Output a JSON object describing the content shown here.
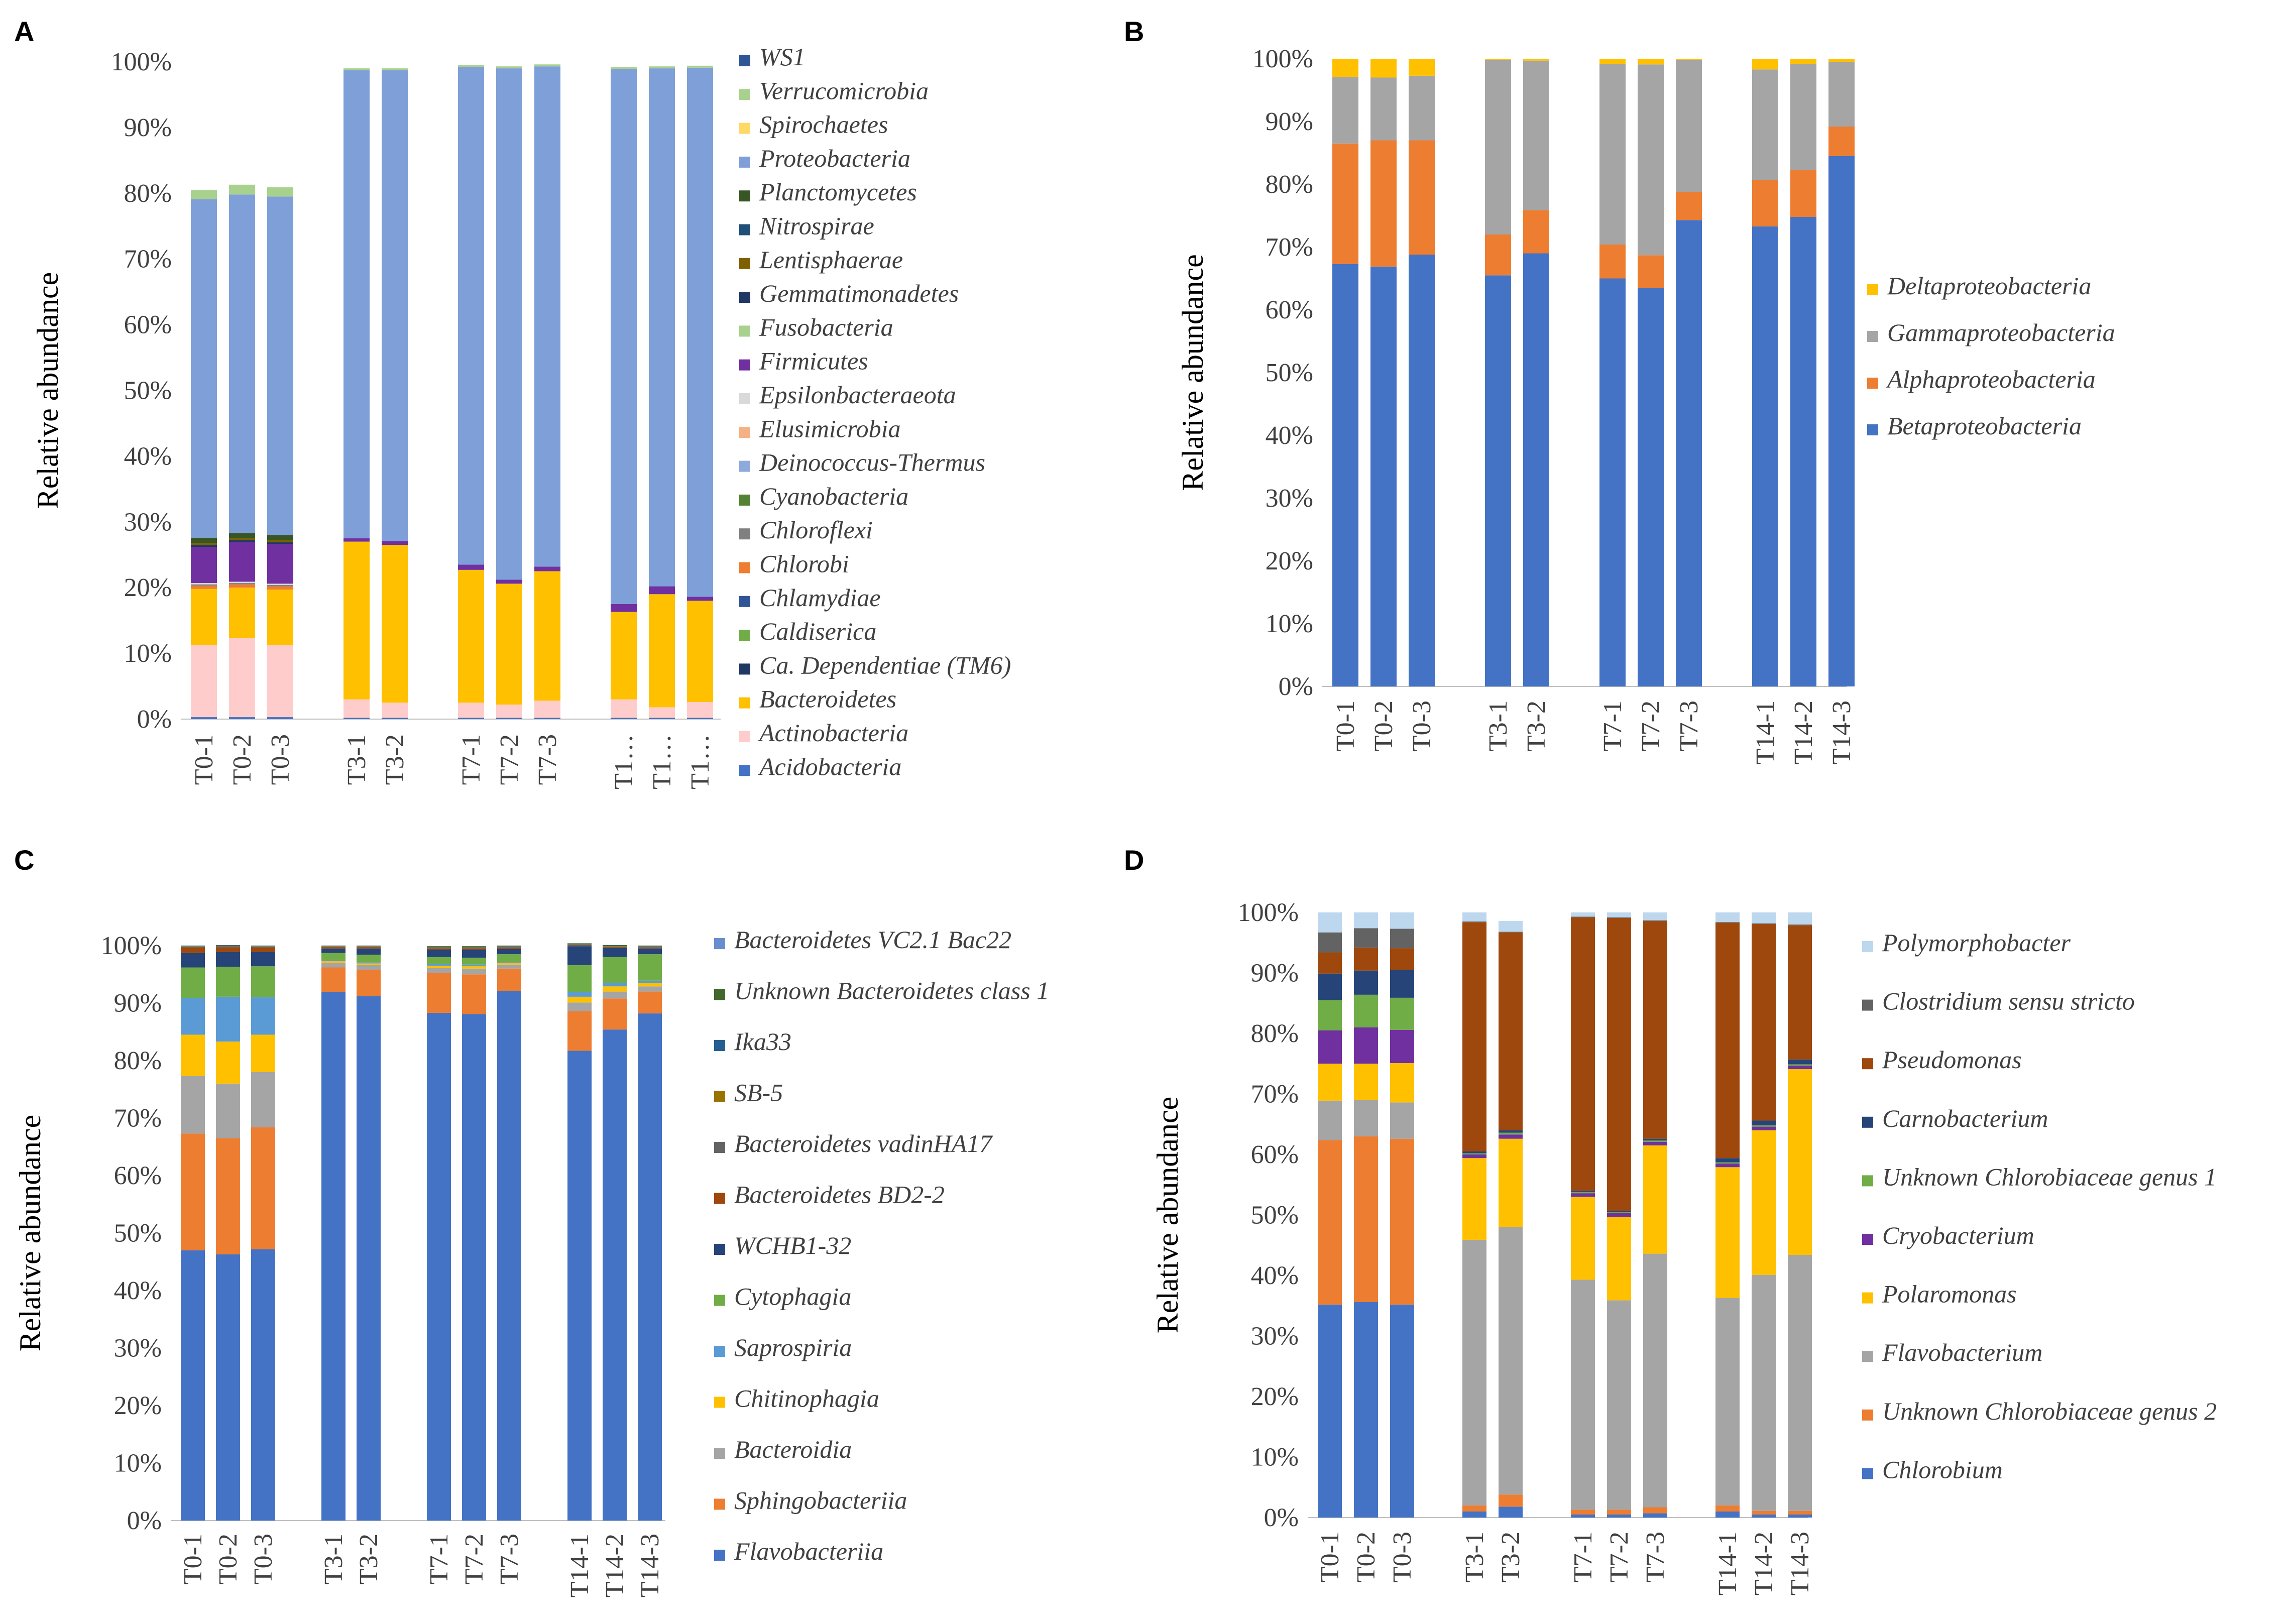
{
  "panels": [
    {
      "letter": "A"
    },
    {
      "letter": "B"
    },
    {
      "letter": "C"
    },
    {
      "letter": "D"
    }
  ],
  "chart_data": [
    {
      "panel": "A",
      "type": "bar",
      "stacked": true,
      "ylabel": "Relative abundance",
      "ylim": [
        0,
        100
      ],
      "yticks": [
        "0%",
        "10%",
        "20%",
        "30%",
        "40%",
        "50%",
        "60%",
        "70%",
        "80%",
        "90%",
        "100%"
      ],
      "categories": [
        "T0-1",
        "T0-2",
        "T0-3",
        "",
        "T3-1",
        "T3-2",
        "",
        "T7-1",
        "T7-2",
        "T7-3",
        "",
        "T1…",
        "T1…",
        "T1…"
      ],
      "legend_position": "right",
      "series": [
        {
          "name": "Acidobacteria",
          "color": "#4472C4",
          "values": [
            0.3,
            0.3,
            0.3,
            0,
            0.2,
            0.2,
            0,
            0.2,
            0.2,
            0.2,
            0,
            0.2,
            0.2,
            0.2
          ]
        },
        {
          "name": "Actinobacteria",
          "color": "#FFCCCC",
          "values": [
            11,
            12,
            11,
            0,
            2.8,
            2.3,
            0,
            2.3,
            2.0,
            2.6,
            0,
            2.8,
            1.6,
            2.4
          ]
        },
        {
          "name": "Bacteroidetes",
          "color": "#FFC000",
          "values": [
            8.5,
            7.7,
            8.4,
            0,
            24,
            24,
            0,
            20.2,
            18.4,
            19.7,
            0,
            13.3,
            17.2,
            15.4
          ]
        },
        {
          "name": "Ca. Dependentiae (TM6)",
          "color": "#203864",
          "values": [
            0,
            0,
            0,
            0,
            0,
            0,
            0,
            0,
            0,
            0,
            0,
            0,
            0,
            0
          ]
        },
        {
          "name": "Caldiserica",
          "color": "#70AD47",
          "values": [
            0,
            0,
            0,
            0,
            0,
            0,
            0,
            0,
            0,
            0,
            0,
            0,
            0,
            0
          ]
        },
        {
          "name": "Chlamydiae",
          "color": "#2F5597",
          "values": [
            0,
            0,
            0,
            0,
            0,
            0,
            0,
            0,
            0,
            0,
            0,
            0,
            0,
            0
          ]
        },
        {
          "name": "Chlorobi",
          "color": "#ED7D31",
          "values": [
            0.5,
            0.5,
            0.5,
            0,
            0,
            0,
            0,
            0,
            0,
            0,
            0,
            0,
            0,
            0
          ]
        },
        {
          "name": "Chloroflexi",
          "color": "#808080",
          "values": [
            0.2,
            0.2,
            0.2,
            0,
            0,
            0,
            0,
            0,
            0,
            0,
            0,
            0,
            0,
            0
          ]
        },
        {
          "name": "Cyanobacteria",
          "color": "#548235",
          "values": [
            0,
            0,
            0,
            0,
            0,
            0,
            0,
            0,
            0,
            0,
            0,
            0,
            0,
            0
          ]
        },
        {
          "name": "Deinococcus-Thermus",
          "color": "#8EA9DB",
          "values": [
            0,
            0,
            0,
            0,
            0,
            0,
            0,
            0,
            0,
            0,
            0,
            0,
            0,
            0
          ]
        },
        {
          "name": "Elusimicrobia",
          "color": "#F4B183",
          "values": [
            0,
            0,
            0,
            0,
            0,
            0,
            0,
            0,
            0,
            0,
            0,
            0,
            0,
            0
          ]
        },
        {
          "name": "Epsilonbacteraeota",
          "color": "#D9D9D9",
          "values": [
            0.2,
            0.2,
            0.2,
            0,
            0,
            0,
            0,
            0,
            0,
            0,
            0,
            0,
            0,
            0
          ]
        },
        {
          "name": "Firmicutes",
          "color": "#7030A0",
          "values": [
            5.5,
            6,
            6,
            0,
            0.5,
            0.6,
            0,
            0.8,
            0.6,
            0.7,
            0,
            1.2,
            1.2,
            0.6
          ]
        },
        {
          "name": "Fusobacteria",
          "color": "#A9D18E",
          "values": [
            0,
            0,
            0,
            0,
            0,
            0,
            0,
            0,
            0,
            0,
            0,
            0,
            0,
            0
          ]
        },
        {
          "name": "Gemmatimonadetes",
          "color": "#1F3864",
          "values": [
            0.3,
            0.3,
            0.3,
            0,
            0,
            0,
            0,
            0,
            0,
            0,
            0,
            0,
            0,
            0
          ]
        },
        {
          "name": "Lentisphaerae",
          "color": "#7F6000",
          "values": [
            0.3,
            0.3,
            0.3,
            0,
            0,
            0,
            0,
            0,
            0,
            0,
            0,
            0,
            0,
            0
          ]
        },
        {
          "name": "Nitrospirae",
          "color": "#1F4E79",
          "values": [
            0,
            0,
            0,
            0,
            0,
            0,
            0,
            0,
            0,
            0,
            0,
            0,
            0,
            0
          ]
        },
        {
          "name": "Planctomycetes",
          "color": "#375623",
          "values": [
            0.8,
            0.8,
            0.8,
            0,
            0,
            0,
            0,
            0,
            0,
            0,
            0,
            0,
            0,
            0
          ]
        },
        {
          "name": "Proteobacteria",
          "color": "#7F9FD9",
          "values": [
            51.5,
            51.5,
            51.5,
            0,
            71.2,
            71.6,
            0,
            75.7,
            77.8,
            76.1,
            0,
            81.4,
            78.8,
            80.5
          ]
        },
        {
          "name": "Spirochaetes",
          "color": "#FFD966",
          "values": [
            0,
            0,
            0,
            0,
            0,
            0,
            0,
            0,
            0,
            0,
            0,
            0,
            0,
            0
          ]
        },
        {
          "name": "Verrucomicrobia",
          "color": "#A9D18E",
          "values": [
            1.4,
            1.5,
            1.4,
            0,
            0.3,
            0.3,
            0,
            0.3,
            0.3,
            0.3,
            0,
            0.3,
            0.3,
            0.3
          ]
        },
        {
          "name": "WS1",
          "color": "#2F5597",
          "values": [
            0,
            0,
            0,
            0,
            0,
            0,
            0,
            0,
            0,
            0,
            0,
            0,
            0,
            0
          ]
        }
      ]
    },
    {
      "panel": "B",
      "type": "bar",
      "stacked": true,
      "ylabel": "Relative abundance",
      "ylim": [
        0,
        100
      ],
      "yticks": [
        "0%",
        "10%",
        "20%",
        "30%",
        "40%",
        "50%",
        "60%",
        "70%",
        "80%",
        "90%",
        "100%"
      ],
      "categories": [
        "T0-1",
        "T0-2",
        "T0-3",
        "",
        "T3-1",
        "T3-2",
        "",
        "T7-1",
        "T7-2",
        "T7-3",
        "",
        "T14-1",
        "T14-2",
        "T14-3"
      ],
      "legend_position": "right",
      "series": [
        {
          "name": "Betaproteobacteria",
          "color": "#4472C4",
          "values": [
            67.3,
            66.9,
            68.8,
            0,
            65.5,
            69.0,
            0,
            65.0,
            63.5,
            74.3,
            0,
            73.3,
            74.8,
            84.5
          ]
        },
        {
          "name": "Alphaproteobacteria",
          "color": "#ED7D31",
          "values": [
            19.2,
            20.1,
            18.2,
            0,
            6.5,
            6.9,
            0,
            5.4,
            5.2,
            4.5,
            0,
            7.4,
            7.5,
            4.7
          ]
        },
        {
          "name": "Gammaproteobacteria",
          "color": "#A5A5A5",
          "values": [
            10.6,
            10.0,
            10.3,
            0,
            27.8,
            23.8,
            0,
            28.8,
            30.4,
            21.0,
            0,
            17.6,
            16.9,
            10.3
          ]
        },
        {
          "name": "Deltaproteobacteria",
          "color": "#FFC000",
          "values": [
            2.9,
            3.0,
            2.7,
            0,
            0.2,
            0.3,
            0,
            0.8,
            0.9,
            0.2,
            0,
            1.7,
            0.8,
            0.5
          ]
        }
      ]
    },
    {
      "panel": "C",
      "type": "bar",
      "stacked": true,
      "ylabel": "Relative abundance",
      "ylim": [
        0,
        100
      ],
      "yticks": [
        "0%",
        "10%",
        "20%",
        "30%",
        "40%",
        "50%",
        "60%",
        "70%",
        "80%",
        "90%",
        "100%"
      ],
      "categories": [
        "T0-1",
        "T0-2",
        "T0-3",
        "",
        "T3-1",
        "T3-2",
        "",
        "T7-1",
        "T7-2",
        "T7-3",
        "",
        "T14-1",
        "T14-2",
        "T14-3"
      ],
      "legend_position": "right",
      "series": [
        {
          "name": "Flavobacteriia",
          "color": "#4472C4",
          "values": [
            47,
            46.3,
            47.2,
            0,
            91.9,
            91.2,
            0,
            88.3,
            88.1,
            92.1,
            0,
            81.7,
            85.4,
            88.2
          ]
        },
        {
          "name": "Sphingobacteriia",
          "color": "#ED7D31",
          "values": [
            20.3,
            20.2,
            21.2,
            0,
            4.3,
            4.6,
            0,
            6.9,
            6.9,
            3.9,
            0,
            6.9,
            5.4,
            3.8
          ]
        },
        {
          "name": "Bacteroidia",
          "color": "#A5A5A5",
          "values": [
            10.0,
            9.5,
            9.6,
            0,
            0.8,
            0.8,
            0,
            0.9,
            1.0,
            0.7,
            0,
            1.5,
            1.2,
            0.9
          ]
        },
        {
          "name": "Chitinophagia",
          "color": "#FFC000",
          "values": [
            7.2,
            7.3,
            6.5,
            0,
            0.3,
            0.3,
            0,
            0.4,
            0.4,
            0.3,
            0,
            1.0,
            0.9,
            0.6
          ]
        },
        {
          "name": "Saprospiria",
          "color": "#5B9BD5",
          "values": [
            6.4,
            7.8,
            6.5,
            0,
            0.2,
            0.2,
            0,
            0.3,
            0.3,
            0.2,
            0,
            0.8,
            0.6,
            0.4
          ]
        },
        {
          "name": "Cytophagia",
          "color": "#70AD47",
          "values": [
            5.3,
            5.2,
            5.4,
            0,
            1.2,
            1.3,
            0,
            1.2,
            1.2,
            1.3,
            0,
            4.7,
            4.5,
            4.6
          ]
        },
        {
          "name": "WCHB1-32",
          "color": "#264478",
          "values": [
            2.5,
            2.6,
            2.5,
            0,
            0.8,
            1.1,
            0,
            1.3,
            1.4,
            0.9,
            0,
            3.3,
            1.6,
            1.0
          ]
        },
        {
          "name": "Bacteroidetes BD2-2",
          "color": "#9E480E",
          "values": [
            0.9,
            0.8,
            0.7,
            0,
            0.2,
            0.2,
            0,
            0.2,
            0.2,
            0.2,
            0,
            0.1,
            0.1,
            0.1
          ]
        },
        {
          "name": "Bacteroidetes vadinHA17",
          "color": "#636363",
          "values": [
            0.2,
            0.2,
            0.2,
            0,
            0.1,
            0.1,
            0,
            0.1,
            0.1,
            0.1,
            0,
            0.1,
            0.1,
            0.1
          ]
        },
        {
          "name": "SB-5",
          "color": "#997300",
          "values": [
            0.1,
            0.1,
            0.1,
            0,
            0.1,
            0.1,
            0,
            0.1,
            0.1,
            0.1,
            0,
            0.1,
            0.1,
            0.1
          ]
        },
        {
          "name": "Ika33",
          "color": "#255E91",
          "values": [
            0.1,
            0.1,
            0.1,
            0,
            0.1,
            0.1,
            0,
            0.1,
            0.1,
            0.1,
            0,
            0.1,
            0.1,
            0.1
          ]
        },
        {
          "name": "Unknown Bacteroidetes class 1",
          "color": "#43682B",
          "values": [
            0,
            0,
            0,
            0,
            0,
            0,
            0,
            0.1,
            0.1,
            0.1,
            0,
            0.1,
            0.1,
            0.1
          ]
        },
        {
          "name": "Bacteroidetes VC2.1 Bac22",
          "color": "#698ED0",
          "values": [
            0,
            0,
            0,
            0,
            0,
            0,
            0,
            0,
            0,
            0,
            0,
            0,
            0,
            0
          ]
        }
      ]
    },
    {
      "panel": "D",
      "type": "bar",
      "stacked": true,
      "ylabel": "Relative abundance",
      "ylim": [
        0,
        100
      ],
      "yticks": [
        "0%",
        "10%",
        "20%",
        "30%",
        "40%",
        "50%",
        "60%",
        "70%",
        "80%",
        "90%",
        "100%"
      ],
      "categories": [
        "T0-1",
        "T0-2",
        "T0-3",
        "",
        "T3-1",
        "T3-2",
        "",
        "T7-1",
        "T7-2",
        "T7-3",
        "",
        "T14-1",
        "T14-2",
        "T14-3"
      ],
      "legend_position": "right",
      "series": [
        {
          "name": "Chlorobium",
          "color": "#4472C4",
          "values": [
            35.2,
            35.6,
            35.2,
            0,
            1.0,
            1.8,
            0,
            0.5,
            0.5,
            0.7,
            0,
            1.0,
            0.5,
            0.5
          ]
        },
        {
          "name": "Unknown Chlorobiaceae genus 2",
          "color": "#ED7D31",
          "values": [
            27.2,
            27.4,
            27.4,
            0,
            1.0,
            2.0,
            0,
            0.8,
            0.8,
            1.0,
            0,
            1.0,
            0.6,
            0.6
          ]
        },
        {
          "name": "Flavobacterium",
          "color": "#A5A5A5",
          "values": [
            6.5,
            6.0,
            6.0,
            0,
            43.9,
            44.2,
            0,
            38.0,
            34.6,
            41.9,
            0,
            34.3,
            39.0,
            42.3
          ]
        },
        {
          "name": "Polaromonas",
          "color": "#FFC000",
          "values": [
            6.1,
            6.0,
            6.5,
            0,
            13.5,
            14.6,
            0,
            13.7,
            13.8,
            17.9,
            0,
            21.6,
            23.9,
            30.7
          ]
        },
        {
          "name": "Cryobacterium",
          "color": "#7030A0",
          "values": [
            5.5,
            6.0,
            5.5,
            0,
            0.6,
            0.7,
            0,
            0.6,
            0.6,
            0.6,
            0,
            0.6,
            0.6,
            0.6
          ]
        },
        {
          "name": "Unknown Chlorobiaceae genus 1",
          "color": "#70AD47",
          "values": [
            5.0,
            5.4,
            5.3,
            0,
            0.2,
            0.3,
            0,
            0.2,
            0.2,
            0.2,
            0,
            0.2,
            0.2,
            0.2
          ]
        },
        {
          "name": "Carnobacterium",
          "color": "#264478",
          "values": [
            4.4,
            4.0,
            4.6,
            0,
            0.3,
            0.4,
            0,
            0.2,
            0.2,
            0.3,
            0,
            0.7,
            0.8,
            0.8
          ]
        },
        {
          "name": "Pseudomonas",
          "color": "#9E480E",
          "values": [
            3.5,
            3.8,
            3.6,
            0,
            37.9,
            32.7,
            0,
            45.2,
            48.4,
            36.0,
            0,
            38.9,
            32.5,
            22.2
          ]
        },
        {
          "name": "Clostridium sensu stricto",
          "color": "#636363",
          "values": [
            3.3,
            3.2,
            3.2,
            0,
            0.1,
            0.1,
            0,
            0.1,
            0.1,
            0.1,
            0,
            0.1,
            0.1,
            0.1
          ]
        },
        {
          "name": "Polymorphobacter",
          "color": "#BDD7EE",
          "values": [
            3.3,
            2.6,
            2.7,
            0,
            1.5,
            1.8,
            0,
            0.7,
            0.8,
            1.3,
            0,
            1.6,
            1.8,
            2.0
          ]
        }
      ]
    }
  ]
}
